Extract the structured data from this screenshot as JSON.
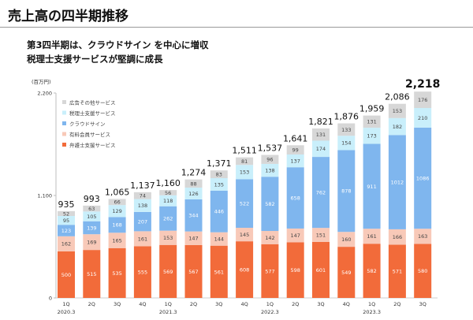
{
  "title": "売上高の四半期推移",
  "subtitle_lines": [
    "第3四半期は、クラウドサイン を中心に増収",
    "税理士支援サービスが堅調に成長"
  ],
  "chart_data": {
    "type": "bar",
    "stacked": true,
    "unit_label": "(百万円)",
    "ylim": [
      0,
      2200
    ],
    "yticks": [
      0,
      1100,
      2200
    ],
    "ytick_labels": [
      "0",
      "1,100",
      "2,200"
    ],
    "categories": [
      "1Q",
      "2Q",
      "3Q",
      "4Q",
      "1Q",
      "2Q",
      "3Q",
      "4Q",
      "1Q",
      "2Q",
      "3Q",
      "4Q",
      "1Q",
      "2Q",
      "3Q"
    ],
    "year_labels": [
      {
        "index": 0,
        "label": "2020.3"
      },
      {
        "index": 4,
        "label": "2021.3"
      },
      {
        "index": 8,
        "label": "2022.3"
      },
      {
        "index": 12,
        "label": "2023.3"
      }
    ],
    "legend_position": "top-left",
    "series": [
      {
        "name": "弁護士支援サービス",
        "color": "#f26b3a",
        "label_color": "#ffffff",
        "values": [
          500,
          515,
          535,
          555,
          569,
          567,
          561,
          608,
          577,
          598,
          601,
          549,
          582,
          571,
          580
        ]
      },
      {
        "name": "有料会員サービス",
        "color": "#f8c9b8",
        "label_color": "#444444",
        "values": [
          162,
          169,
          165,
          161,
          153,
          147,
          144,
          145,
          142,
          147,
          151,
          160,
          161,
          166,
          163
        ]
      },
      {
        "name": "クラウドサイン",
        "color": "#7fb6ee",
        "label_color": "#ffffff",
        "values": [
          123,
          139,
          168,
          207,
          262,
          344,
          446,
          522,
          582,
          658,
          762,
          878,
          911,
          1012,
          1086
        ]
      },
      {
        "name": "税理士支援サービス",
        "color": "#c9effb",
        "label_color": "#444444",
        "values": [
          95,
          105,
          129,
          138,
          118,
          126,
          135,
          153,
          138,
          137,
          174,
          154,
          173,
          182,
          210
        ]
      },
      {
        "name": "広告その他サービス",
        "color": "#d7d7d7",
        "label_color": "#444444",
        "values": [
          52,
          63,
          66,
          74,
          56,
          88,
          83,
          81,
          96,
          99,
          131,
          133,
          131,
          153,
          176
        ]
      }
    ],
    "totals": [
      "935",
      "993",
      "1,065",
      "1,137",
      "1,160",
      "1,274",
      "1,371",
      "1,511",
      "1,537",
      "1,641",
      "1,821",
      "1,876",
      "1,959",
      "2,086",
      "2,218"
    ]
  }
}
